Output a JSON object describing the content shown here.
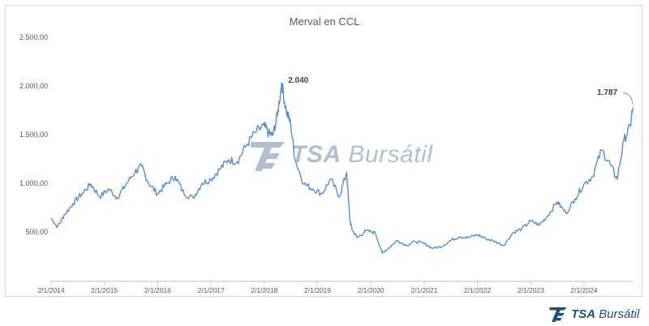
{
  "chart_data": {
    "type": "line",
    "title": "Merval en CCL",
    "xlabel": "",
    "ylabel": "",
    "x_range": [
      "2014-01-02",
      "2024-12-01"
    ],
    "ylim": [
      0,
      2500
    ],
    "y_ticks": [
      500,
      1000,
      1500,
      2000,
      2500
    ],
    "y_tick_labels": [
      "500,00",
      "1.000,00",
      "1.500,00",
      "2.000,00",
      "2.500,00"
    ],
    "x_tick_labels": [
      "2/1/2014",
      "2/1/2015",
      "2/1/2016",
      "2/1/2017",
      "2/1/2018",
      "2/1/2019",
      "2/1/2020",
      "2/1/2021",
      "2/1/2022",
      "2/1/2023",
      "2/1/2024"
    ],
    "grid": false,
    "legend": "none",
    "series": [
      {
        "color": "#5b8ec9",
        "points": [
          [
            "2014-01-02",
            650
          ],
          [
            "2014-02-15",
            560
          ],
          [
            "2014-04-01",
            680
          ],
          [
            "2014-06-01",
            800
          ],
          [
            "2014-08-01",
            900
          ],
          [
            "2014-10-01",
            1000
          ],
          [
            "2014-12-01",
            870
          ],
          [
            "2015-02-01",
            950
          ],
          [
            "2015-04-01",
            860
          ],
          [
            "2015-06-01",
            1000
          ],
          [
            "2015-08-01",
            1130
          ],
          [
            "2015-09-15",
            1180
          ],
          [
            "2015-11-01",
            1010
          ],
          [
            "2016-01-01",
            900
          ],
          [
            "2016-03-01",
            1000
          ],
          [
            "2016-05-01",
            1080
          ],
          [
            "2016-07-01",
            900
          ],
          [
            "2016-09-01",
            860
          ],
          [
            "2016-11-01",
            1010
          ],
          [
            "2017-01-01",
            1050
          ],
          [
            "2017-03-01",
            1150
          ],
          [
            "2017-05-01",
            1250
          ],
          [
            "2017-07-01",
            1230
          ],
          [
            "2017-09-01",
            1400
          ],
          [
            "2017-11-01",
            1530
          ],
          [
            "2018-01-01",
            1600
          ],
          [
            "2018-02-01",
            1520
          ],
          [
            "2018-03-01",
            1500
          ],
          [
            "2018-04-01",
            1700
          ],
          [
            "2018-05-01",
            2040
          ],
          [
            "2018-06-01",
            1750
          ],
          [
            "2018-07-01",
            1620
          ],
          [
            "2018-08-01",
            1250
          ],
          [
            "2018-10-01",
            1000
          ],
          [
            "2018-12-01",
            950
          ],
          [
            "2019-02-01",
            900
          ],
          [
            "2019-04-01",
            1050
          ],
          [
            "2019-06-01",
            870
          ],
          [
            "2019-07-20",
            1120
          ],
          [
            "2019-08-12",
            620
          ],
          [
            "2019-08-30",
            520
          ],
          [
            "2019-10-01",
            450
          ],
          [
            "2019-12-01",
            520
          ],
          [
            "2020-02-01",
            500
          ],
          [
            "2020-03-20",
            290
          ],
          [
            "2020-05-01",
            340
          ],
          [
            "2020-07-01",
            420
          ],
          [
            "2020-09-01",
            370
          ],
          [
            "2020-11-01",
            410
          ],
          [
            "2021-01-01",
            390
          ],
          [
            "2021-03-01",
            340
          ],
          [
            "2021-05-01",
            360
          ],
          [
            "2021-07-01",
            420
          ],
          [
            "2021-09-01",
            460
          ],
          [
            "2021-11-01",
            450
          ],
          [
            "2022-01-01",
            480
          ],
          [
            "2022-03-01",
            440
          ],
          [
            "2022-05-01",
            410
          ],
          [
            "2022-07-01",
            370
          ],
          [
            "2022-09-01",
            500
          ],
          [
            "2022-11-01",
            540
          ],
          [
            "2023-01-01",
            620
          ],
          [
            "2023-03-01",
            580
          ],
          [
            "2023-05-01",
            680
          ],
          [
            "2023-07-01",
            820
          ],
          [
            "2023-09-01",
            700
          ],
          [
            "2023-11-01",
            850
          ],
          [
            "2024-01-01",
            1000
          ],
          [
            "2024-03-01",
            1080
          ],
          [
            "2024-05-01",
            1350
          ],
          [
            "2024-07-01",
            1200
          ],
          [
            "2024-08-15",
            1050
          ],
          [
            "2024-10-01",
            1450
          ],
          [
            "2024-11-15",
            1600
          ],
          [
            "2024-12-01",
            1787
          ]
        ]
      }
    ],
    "annotations": [
      {
        "text": "2.040",
        "x": "2018-05-01",
        "y": 2040
      },
      {
        "text": "1.787",
        "x": "2024-12-01",
        "y": 1787
      }
    ]
  },
  "watermark": {
    "brand_bold": "TSA",
    "brand_light": "Bursátil"
  },
  "footer": {
    "brand_bold": "TSA",
    "brand_light": "Bursátil"
  },
  "colors": {
    "line": "#5b8ec9",
    "brand": "#1f4e79"
  },
  "icons": {
    "logo": "tsa-logo-icon"
  }
}
